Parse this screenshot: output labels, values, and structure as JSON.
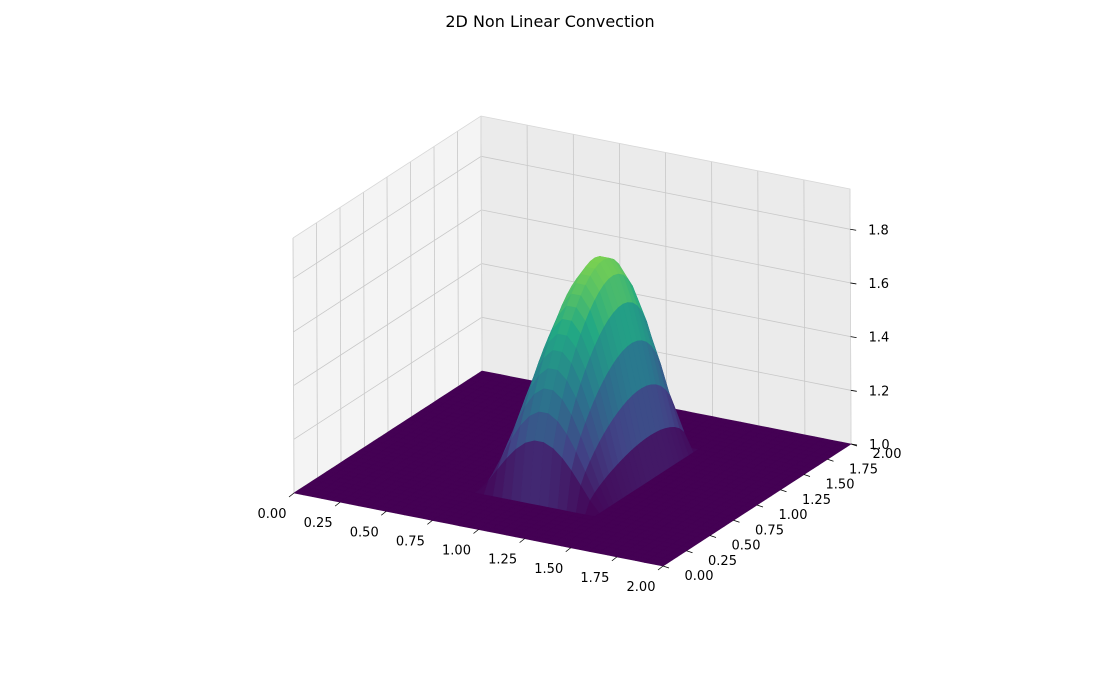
{
  "figure": {
    "title": "2D Non Linear Convection"
  },
  "chart_data": {
    "type": "surface3d",
    "title": "2D Non Linear Convection",
    "xlabel": "",
    "ylabel": "",
    "zlabel": "",
    "xlim": [
      0.0,
      2.0
    ],
    "ylim": [
      0.0,
      2.0
    ],
    "zlim": [
      1.0,
      1.95
    ],
    "x_ticks": [
      "0.00",
      "0.25",
      "0.50",
      "0.75",
      "1.00",
      "1.25",
      "1.50",
      "1.75",
      "2.00"
    ],
    "y_ticks": [
      "0.00",
      "0.25",
      "0.50",
      "0.75",
      "1.00",
      "1.25",
      "1.50",
      "1.75",
      "2.00"
    ],
    "z_ticks": [
      "1.0",
      "1.2",
      "1.4",
      "1.6",
      "1.8"
    ],
    "z_tick_values": [
      1.0,
      1.2,
      1.4,
      1.6,
      1.8
    ],
    "grid": true,
    "colormap": "viridis",
    "colormap_stops": [
      "#440154",
      "#414487",
      "#2a788e",
      "#22a884",
      "#7ad151",
      "#fde725"
    ],
    "surface": {
      "baseline": 1.0,
      "peak": 1.95,
      "hump_x_range": [
        0.75,
        1.4
      ],
      "hump_y_range": [
        0.45,
        1.55
      ],
      "grid_resolution": 41
    },
    "pane_color": "#f2f2f2",
    "gridline_color": "#c8c8c8"
  }
}
